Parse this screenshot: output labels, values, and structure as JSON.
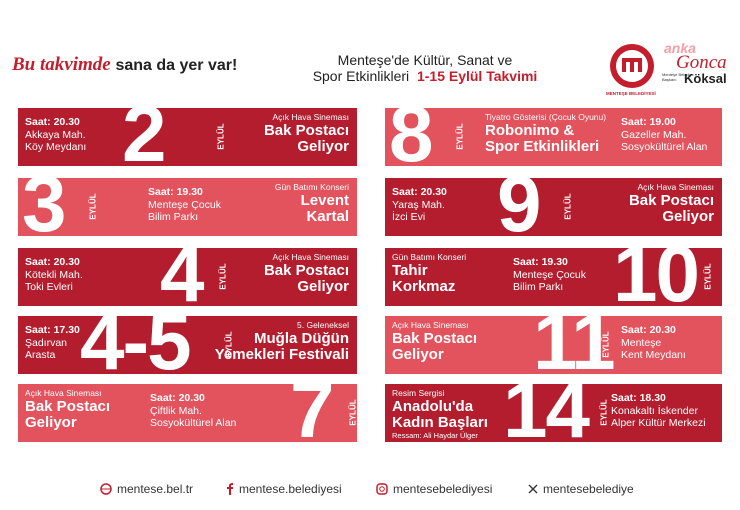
{
  "header": {
    "tagline": [
      "Bu takvimde",
      "sana da yer var!"
    ],
    "title": [
      "Menteşe'de Kültür, Sanat ve",
      "Spor Etkinlikleri"
    ],
    "subtitle": "1-15 Eylül Takvimi",
    "logo_text": "MENTEŞE BELEDİYESİ",
    "mayor": {
      "brand": "anka",
      "first": "Gonca",
      "last": "Köksal",
      "role": "Menteşe Belediye Başkanı"
    }
  },
  "events": [
    {
      "day": "2",
      "month": "EYLÜL",
      "time": "Saat: 20.30",
      "place": [
        "Akkaya Mah.",
        "Köy Meydanı"
      ],
      "category": "Açık Hava Sineması",
      "title": [
        "Bak Postacı",
        "Geliyor"
      ]
    },
    {
      "day": "3",
      "month": "EYLÜL",
      "time": "Saat: 19.30",
      "place": [
        "Menteşe Çocuk",
        "Bilim Parkı"
      ],
      "category": "Gün Batımı Konseri",
      "title": [
        "Levent",
        "Kartal"
      ]
    },
    {
      "day": "4",
      "month": "EYLÜL",
      "time": "Saat: 20.30",
      "place": [
        "Kötekli Mah.",
        "Toki Evleri"
      ],
      "category": "Açık Hava Sineması",
      "title": [
        "Bak Postacı",
        "Geliyor"
      ]
    },
    {
      "day": "4-5",
      "month": "EYLÜL",
      "time": "Saat: 17.30",
      "place": [
        "Şadırvan",
        "Arasta"
      ],
      "category": "5. Geleneksel",
      "title": [
        "Muğla Düğün",
        "Yemekleri Festivali"
      ]
    },
    {
      "day": "7",
      "month": "EYLÜL",
      "time": "Saat: 20.30",
      "place": [
        "Çiftlik Mah.",
        "Sosyokültürel Alan"
      ],
      "category": "Açık Hava Sineması",
      "title": [
        "Bak Postacı",
        "Geliyor"
      ]
    },
    {
      "day": "8",
      "month": "EYLÜL",
      "time": "Saat: 19.00",
      "place": [
        "Gazeller Mah.",
        "Sosyokültürel Alan"
      ],
      "category": "Tiyatro Gösterisi (Çocuk Oyunu)",
      "title": [
        "Robonimo &",
        "Spor Etkinlikleri"
      ]
    },
    {
      "day": "9",
      "month": "EYLÜL",
      "time": "Saat: 20.30",
      "place": [
        "Yaraş Mah.",
        "İzci Evi"
      ],
      "category": "Açık Hava Sineması",
      "title": [
        "Bak Postacı",
        "Geliyor"
      ]
    },
    {
      "day": "10",
      "month": "EYLÜL",
      "time": "Saat: 19.30",
      "place": [
        "Menteşe Çocuk",
        "Bilim Parkı"
      ],
      "category": "Gün Batımı Konseri",
      "title": [
        "Tahir",
        "Korkmaz"
      ]
    },
    {
      "day": "11",
      "month": "EYLÜL",
      "time": "Saat: 20.30",
      "place": [
        "Menteşe",
        "Kent Meydanı"
      ],
      "category": "Açık Hava Sineması",
      "title": [
        "Bak Postacı",
        "Geliyor"
      ]
    },
    {
      "day": "14",
      "month": "EYLÜL",
      "time": "Saat: 18.30",
      "place": [
        "Konakaltı İskender",
        "Alper Kültür Merkezi"
      ],
      "category": "Resim Sergisi",
      "title": [
        "Anadolu'da",
        "Kadın Başları"
      ],
      "artist": "Ressam: Ali Haydar Ülger"
    }
  ],
  "footer": {
    "website": "mentese.bel.tr",
    "facebook": "mentese.belediyesi",
    "instagram": "mentesebelediyesi",
    "x": "mentesebelediye"
  }
}
